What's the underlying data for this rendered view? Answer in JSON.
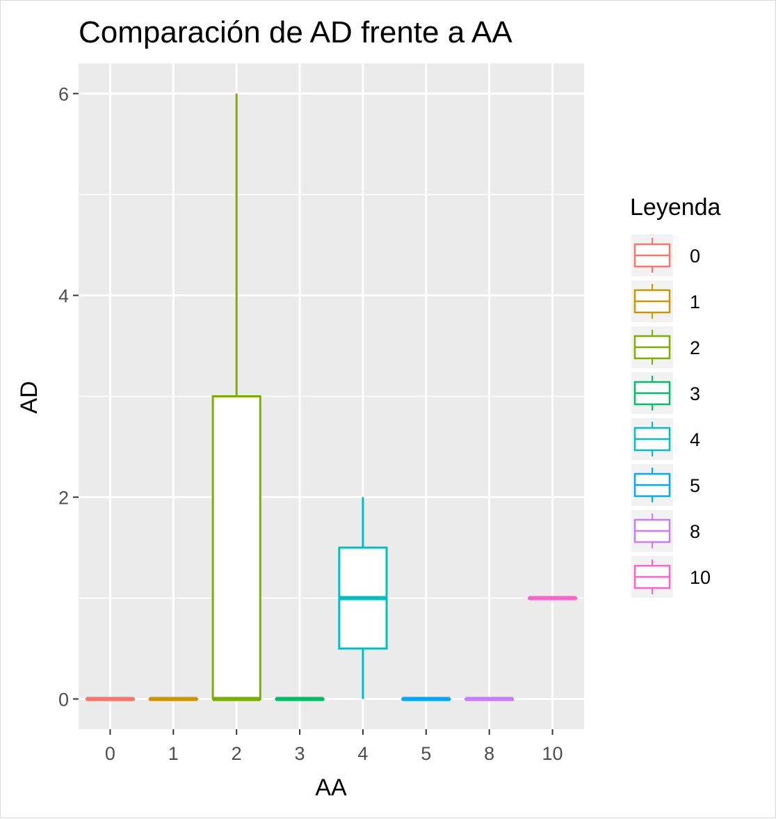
{
  "chart_data": {
    "type": "boxplot",
    "title": "Comparación de AD frente a AA",
    "xlabel": "AA",
    "ylabel": "AD",
    "ylim": [
      -0.3,
      6.3
    ],
    "yticks": [
      0,
      2,
      4,
      6
    ],
    "grid": true,
    "legend": {
      "title": "Leyenda",
      "position": "right"
    },
    "categories": [
      "0",
      "1",
      "2",
      "3",
      "4",
      "5",
      "8",
      "10"
    ],
    "series": [
      {
        "category": "0",
        "color": "#F8766D",
        "min": 0,
        "q1": 0,
        "median": 0,
        "q3": 0,
        "max": 0
      },
      {
        "category": "1",
        "color": "#CD9600",
        "min": 0,
        "q1": 0,
        "median": 0,
        "q3": 0,
        "max": 0
      },
      {
        "category": "2",
        "color": "#7CAE00",
        "min": 0,
        "q1": 0,
        "median": 0,
        "q3": 3,
        "max": 6
      },
      {
        "category": "3",
        "color": "#00BE67",
        "min": 0,
        "q1": 0,
        "median": 0,
        "q3": 0,
        "max": 0
      },
      {
        "category": "4",
        "color": "#00BFC4",
        "min": 0,
        "q1": 0.5,
        "median": 1,
        "q3": 1.5,
        "max": 2
      },
      {
        "category": "5",
        "color": "#00A9FF",
        "min": 0,
        "q1": 0,
        "median": 0,
        "q3": 0,
        "max": 0
      },
      {
        "category": "8",
        "color": "#C77CFF",
        "min": 0,
        "q1": 0,
        "median": 0,
        "q3": 0,
        "max": 0
      },
      {
        "category": "10",
        "color": "#FF61CC",
        "min": 1,
        "q1": 1,
        "median": 1,
        "q3": 1,
        "max": 1
      }
    ]
  }
}
